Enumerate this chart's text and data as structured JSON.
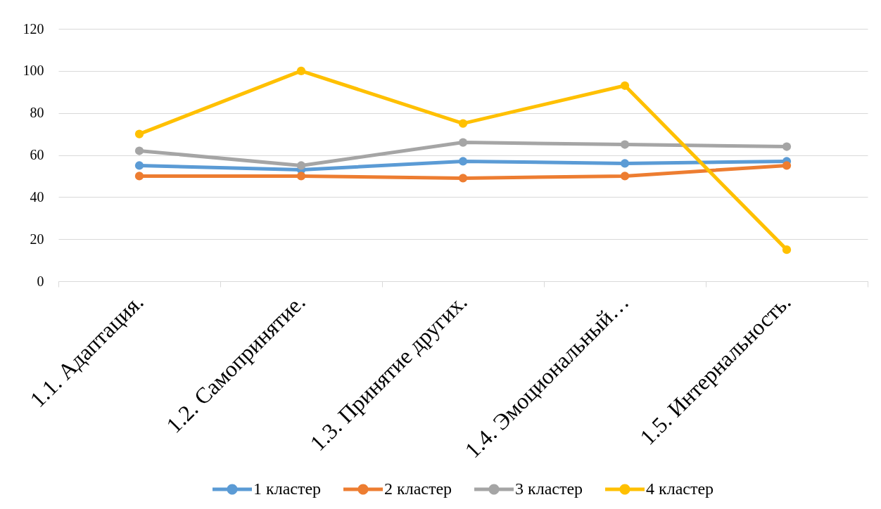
{
  "chart_data": {
    "type": "line",
    "categories": [
      "1.1. Адаптация.",
      "1.2. Самопринятие.",
      "1.3. Принятие других.",
      "1.4. Эмоциональный…",
      "1.5. Интернальность."
    ],
    "series": [
      {
        "name": "1 кластер",
        "color": "#5b9bd5",
        "values": [
          55,
          53,
          57,
          56,
          57
        ]
      },
      {
        "name": "2 кластер",
        "color": "#ed7d31",
        "values": [
          50,
          50,
          49,
          50,
          55
        ]
      },
      {
        "name": "3 кластер",
        "color": "#a5a5a5",
        "values": [
          62,
          55,
          66,
          65,
          64
        ]
      },
      {
        "name": "4 кластер",
        "color": "#ffc000",
        "values": [
          70,
          100,
          75,
          93,
          15
        ]
      }
    ],
    "ylim": [
      0,
      120
    ],
    "yticks": [
      0,
      20,
      40,
      60,
      80,
      100,
      120
    ],
    "grid": "y",
    "legend": "bottom",
    "marker": "circle",
    "line_style": "solid"
  }
}
